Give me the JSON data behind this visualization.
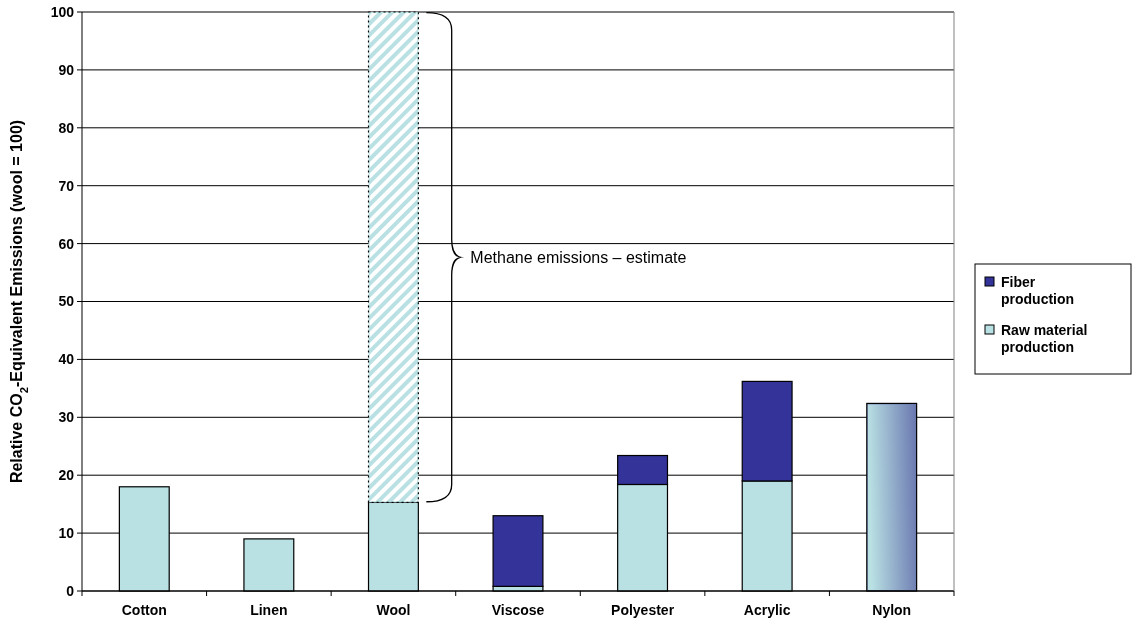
{
  "chart_data": {
    "type": "bar",
    "stacked": true,
    "ylabel": "Relative CO$_{2}$-Equivalent Emissions (wool = 100)",
    "categories": [
      "Cotton",
      "Linen",
      "Wool",
      "Viscose",
      "Polyester",
      "Acrylic",
      "Nylon"
    ],
    "series": [
      {
        "name": "Raw material production",
        "color": "#b9e0e3",
        "values": [
          18,
          9,
          15.3,
          0.8,
          18.4,
          19,
          null
        ]
      },
      {
        "name": "Fiber production",
        "color": "#333399",
        "values": [
          null,
          null,
          null,
          12.2,
          5,
          17.2,
          null
        ]
      },
      {
        "color": "#6a78b0",
        "values": [
          null,
          null,
          null,
          null,
          null,
          null,
          32.4
        ]
      },
      {
        "color": "#b9e0e3",
        "values": [
          null,
          null,
          84.7,
          null,
          null,
          null,
          null
        ]
      }
    ],
    "ylim": [
      0,
      100
    ],
    "yticks": [
      0,
      10,
      20,
      30,
      40,
      50,
      60,
      70,
      80,
      90,
      100
    ],
    "grid": "y",
    "legend": "right",
    "annotations": [
      "Methane emissions – estimate"
    ]
  }
}
